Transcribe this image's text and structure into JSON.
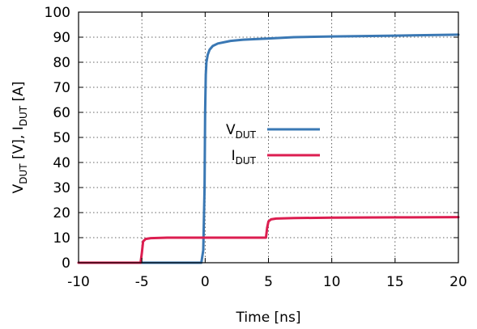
{
  "chart_data": {
    "type": "line",
    "title": "",
    "xlabel": "Time [ns]",
    "ylabel": {
      "main1": "V",
      "sub1": "DUT",
      "unit1": " [V], I",
      "sub2": "DUT",
      "unit2": " [A]"
    },
    "xlim": [
      -10,
      20
    ],
    "ylim": [
      0,
      100
    ],
    "xticks": [
      -10,
      -5,
      0,
      5,
      10,
      15,
      20
    ],
    "yticks": [
      0,
      10,
      20,
      30,
      40,
      50,
      60,
      70,
      80,
      90,
      100
    ],
    "grid": true,
    "legend_position": "center",
    "series": [
      {
        "name": "V",
        "name_sub": "DUT",
        "color": "#3a78b4",
        "points": [
          [
            -10,
            0
          ],
          [
            -0.3,
            0
          ],
          [
            -0.15,
            5
          ],
          [
            -0.05,
            30
          ],
          [
            0.0,
            60
          ],
          [
            0.05,
            75
          ],
          [
            0.1,
            80
          ],
          [
            0.2,
            83
          ],
          [
            0.35,
            85
          ],
          [
            0.6,
            86.5
          ],
          [
            1,
            87.5
          ],
          [
            2,
            88.5
          ],
          [
            3,
            89
          ],
          [
            5,
            89.5
          ],
          [
            7,
            90
          ],
          [
            10,
            90.3
          ],
          [
            15,
            90.6
          ],
          [
            20,
            91
          ]
        ]
      },
      {
        "name": "I",
        "name_sub": "DUT",
        "color": "#dc1e50",
        "points": [
          [
            -10,
            0
          ],
          [
            -5.1,
            0
          ],
          [
            -5.0,
            4
          ],
          [
            -4.9,
            8.5
          ],
          [
            -4.7,
            9.5
          ],
          [
            -4.3,
            9.8
          ],
          [
            -3,
            10
          ],
          [
            0,
            10
          ],
          [
            4.8,
            10
          ],
          [
            4.9,
            14
          ],
          [
            5.0,
            16.5
          ],
          [
            5.2,
            17.3
          ],
          [
            5.6,
            17.6
          ],
          [
            7,
            17.8
          ],
          [
            10,
            18
          ],
          [
            15,
            18.1
          ],
          [
            20,
            18.2
          ]
        ]
      }
    ]
  }
}
